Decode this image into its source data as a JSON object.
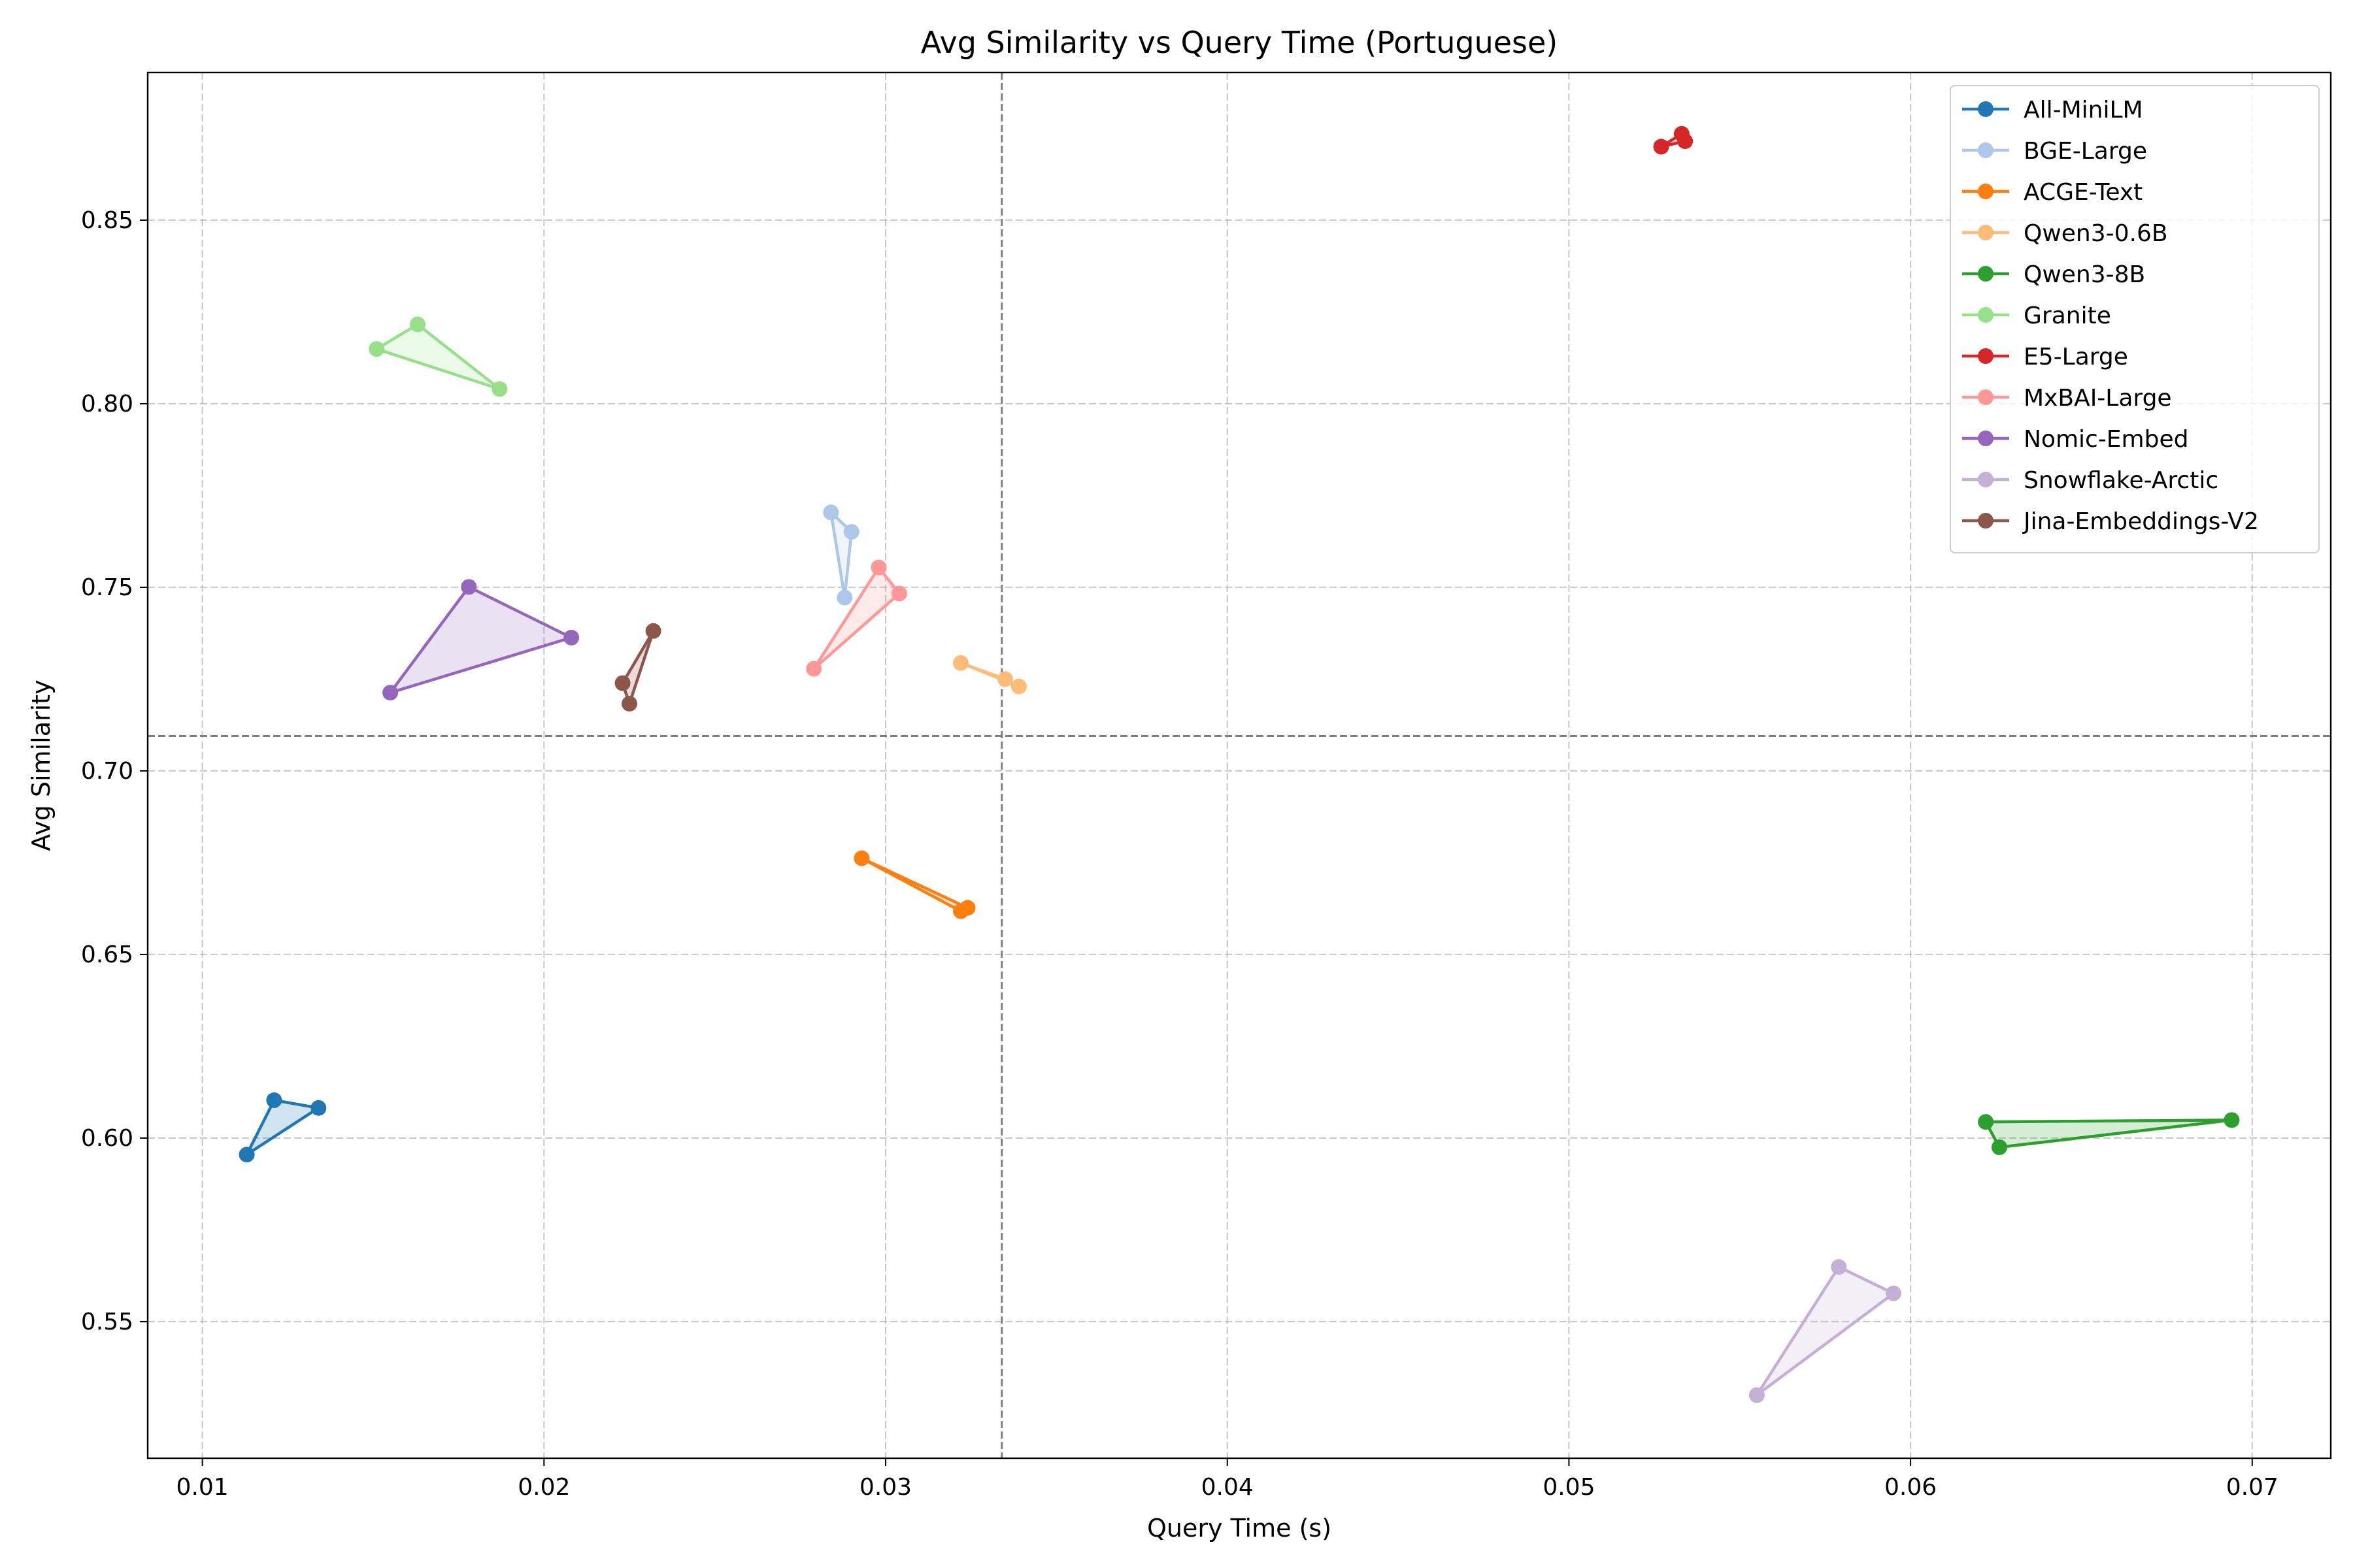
{
  "chart_data": {
    "type": "line",
    "title": "Avg Similarity vs Query Time (Portuguese)",
    "xlabel": "Query Time (s)",
    "ylabel": "Avg Similarity",
    "xlim": [
      0.0084,
      0.0723
    ],
    "ylim": [
      0.5128,
      0.8902
    ],
    "xticks": [
      0.01,
      0.02,
      0.03,
      0.04,
      0.05,
      0.06,
      0.07
    ],
    "xtick_labels": [
      "0.01",
      "0.02",
      "0.03",
      "0.04",
      "0.05",
      "0.06",
      "0.07"
    ],
    "yticks": [
      0.55,
      0.6,
      0.65,
      0.7,
      0.75,
      0.8,
      0.85
    ],
    "ytick_labels": [
      "0.55",
      "0.60",
      "0.65",
      "0.70",
      "0.75",
      "0.80",
      "0.85"
    ],
    "grid": true,
    "legend_position": "top-right",
    "reference_lines": {
      "x": 0.0334,
      "y": 0.7095,
      "color": "#808080"
    },
    "series": [
      {
        "name": "All-MiniLM",
        "color": "#1f77b4",
        "x": [
          0.0113,
          0.0121,
          0.0134
        ],
        "y": [
          0.5955,
          0.6103,
          0.6082
        ]
      },
      {
        "name": "BGE-Large",
        "color": "#aec7e8",
        "x": [
          0.0284,
          0.0288,
          0.029
        ],
        "y": [
          0.7704,
          0.7472,
          0.7651
        ]
      },
      {
        "name": "ACGE-Text",
        "color": "#ff7f0e",
        "x": [
          0.0293,
          0.0322,
          0.0324
        ],
        "y": [
          0.6762,
          0.6618,
          0.6627
        ]
      },
      {
        "name": "Qwen3-0.6B",
        "color": "#ffbb78",
        "x": [
          0.0322,
          0.0335,
          0.0339
        ],
        "y": [
          0.7294,
          0.725,
          0.723
        ]
      },
      {
        "name": "Qwen3-8B",
        "color": "#2ca02c",
        "x": [
          0.0622,
          0.0626,
          0.0694
        ],
        "y": [
          0.6044,
          0.5975,
          0.6049
        ]
      },
      {
        "name": "Granite",
        "color": "#98df8a",
        "x": [
          0.0151,
          0.0163,
          0.0187
        ],
        "y": [
          0.8149,
          0.8216,
          0.804
        ]
      },
      {
        "name": "E5-Large",
        "color": "#d62728",
        "x": [
          0.0527,
          0.0533,
          0.0534
        ],
        "y": [
          0.87,
          0.8735,
          0.8715
        ]
      },
      {
        "name": "MxBAI-Large",
        "color": "#ff9896",
        "x": [
          0.0279,
          0.0298,
          0.0304
        ],
        "y": [
          0.7278,
          0.7554,
          0.7483
        ]
      },
      {
        "name": "Nomic-Embed",
        "color": "#9467bd",
        "x": [
          0.0155,
          0.0178,
          0.0208
        ],
        "y": [
          0.7213,
          0.7501,
          0.7363
        ]
      },
      {
        "name": "Snowflake-Arctic",
        "color": "#c5b0d5",
        "x": [
          0.0555,
          0.0579,
          0.0595
        ],
        "y": [
          0.53,
          0.5649,
          0.5577
        ]
      },
      {
        "name": "Jina-Embeddings-V2",
        "color": "#8c564b",
        "x": [
          0.0223,
          0.0225,
          0.0232
        ],
        "y": [
          0.7239,
          0.7183,
          0.7381
        ]
      }
    ]
  }
}
